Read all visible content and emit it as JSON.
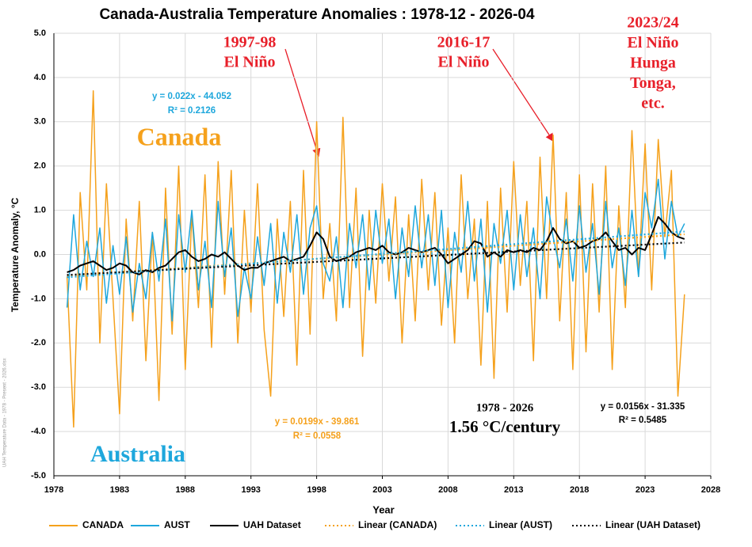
{
  "chart_data": {
    "type": "line",
    "title": "Canada-Australia Temperature Anomalies : 1978-12 - 2026-04",
    "x_label": "Year",
    "y_label": "Temperature Anomaly, °C",
    "side_note": "UAH Temperature Data - 1978 - Present - 2026.xlsx",
    "xlim": [
      1978,
      2028
    ],
    "xticks": [
      1978,
      1983,
      1988,
      1993,
      1998,
      2003,
      2008,
      2013,
      2018,
      2023,
      2028
    ],
    "ylim": [
      -5,
      5
    ],
    "yticks": [
      {
        "value": 5,
        "label": "5.0"
      },
      {
        "value": 4,
        "label": "4.0"
      },
      {
        "value": 3,
        "label": "3.0"
      },
      {
        "value": 2,
        "label": "2.0"
      },
      {
        "value": 1,
        "label": "1.0"
      },
      {
        "value": 0,
        "label": "0.0"
      },
      {
        "value": -1,
        "label": "-1.0"
      },
      {
        "value": -2,
        "label": "-2.0"
      },
      {
        "value": -3,
        "label": "-3.0"
      },
      {
        "value": -4,
        "label": "-4.0"
      },
      {
        "value": -5,
        "label": "-5.0"
      }
    ],
    "grid": true,
    "legend": "bottom",
    "x": [
      1979,
      1979.5,
      1980,
      1980.5,
      1981,
      1981.5,
      1982,
      1982.5,
      1983,
      1983.5,
      1984,
      1984.5,
      1985,
      1985.5,
      1986,
      1986.5,
      1987,
      1987.5,
      1988,
      1988.5,
      1989,
      1989.5,
      1990,
      1990.5,
      1991,
      1991.5,
      1992,
      1992.5,
      1993,
      1993.5,
      1994,
      1994.5,
      1995,
      1995.5,
      1996,
      1996.5,
      1997,
      1997.5,
      1998,
      1998.5,
      1999,
      1999.5,
      2000,
      2000.5,
      2001,
      2001.5,
      2002,
      2002.5,
      2003,
      2003.5,
      2004,
      2004.5,
      2005,
      2005.5,
      2006,
      2006.5,
      2007,
      2007.5,
      2008,
      2008.5,
      2009,
      2009.5,
      2010,
      2010.5,
      2011,
      2011.5,
      2012,
      2012.5,
      2013,
      2013.5,
      2014,
      2014.5,
      2015,
      2015.5,
      2016,
      2016.5,
      2017,
      2017.5,
      2018,
      2018.5,
      2019,
      2019.5,
      2020,
      2020.5,
      2021,
      2021.5,
      2022,
      2022.5,
      2023,
      2023.5,
      2024,
      2024.5,
      2025,
      2025.5,
      2026
    ],
    "series": [
      {
        "name": "CANADA",
        "color": "#f5a11c",
        "width": 1.5,
        "values": [
          -0.5,
          -3.9,
          1.4,
          -0.8,
          3.7,
          -2.0,
          1.6,
          -1.0,
          -3.6,
          0.8,
          -1.5,
          1.2,
          -2.4,
          0.5,
          -3.3,
          1.5,
          -1.8,
          2.0,
          -2.6,
          0.9,
          -1.2,
          1.8,
          -2.1,
          2.1,
          -0.9,
          1.9,
          -2.0,
          1.0,
          -1.3,
          1.6,
          -1.7,
          -3.2,
          0.8,
          -1.4,
          1.2,
          -2.5,
          1.9,
          -1.8,
          3.0,
          -1.0,
          0.7,
          -1.5,
          3.1,
          -1.2,
          1.5,
          -2.3,
          1.0,
          -1.1,
          1.6,
          -0.6,
          1.3,
          -2.0,
          0.9,
          -1.5,
          1.7,
          -0.8,
          1.4,
          -1.6,
          0.6,
          -2.0,
          1.8,
          -1.0,
          0.8,
          -2.5,
          1.2,
          -2.8,
          1.5,
          -1.3,
          2.1,
          -0.7,
          1.2,
          -2.4,
          2.2,
          -1.0,
          2.7,
          -1.5,
          1.4,
          -2.6,
          1.8,
          -2.2,
          1.6,
          -1.3,
          2.0,
          -2.6,
          1.1,
          -1.2,
          2.8,
          -0.5,
          2.5,
          -0.8,
          2.6,
          0.4,
          1.9,
          -3.2,
          -0.9
        ]
      },
      {
        "name": "AUST",
        "color": "#1ea7dc",
        "width": 1.5,
        "values": [
          -1.2,
          0.9,
          -0.8,
          0.3,
          -0.5,
          0.6,
          -1.1,
          0.2,
          -0.9,
          0.4,
          -1.3,
          -0.2,
          -1.0,
          0.5,
          -0.6,
          0.8,
          -1.5,
          0.9,
          -0.4,
          1.0,
          -0.8,
          0.3,
          -1.2,
          1.2,
          -0.5,
          0.6,
          -1.4,
          -0.3,
          -1.0,
          0.4,
          -0.7,
          0.7,
          -1.1,
          0.5,
          -0.4,
          0.9,
          -0.9,
          0.6,
          1.1,
          -0.2,
          -0.6,
          0.4,
          -1.2,
          0.7,
          -0.3,
          0.9,
          -0.8,
          1.0,
          -0.2,
          0.8,
          -1.0,
          0.6,
          -0.5,
          1.1,
          -0.3,
          0.9,
          -0.7,
          1.0,
          -1.2,
          0.5,
          -0.4,
          1.2,
          -0.6,
          0.8,
          -1.3,
          0.7,
          -0.2,
          1.0,
          -0.8,
          0.9,
          -0.5,
          0.6,
          -1.0,
          1.3,
          0.4,
          -0.3,
          0.8,
          -0.6,
          1.1,
          -0.4,
          0.7,
          -0.9,
          1.2,
          -0.3,
          0.6,
          -0.7,
          1.0,
          -0.5,
          1.4,
          0.6,
          1.7,
          -0.1,
          1.2,
          0.4,
          0.7
        ]
      },
      {
        "name": "UAH Dataset",
        "color": "#000000",
        "width": 2,
        "values": [
          -0.4,
          -0.35,
          -0.25,
          -0.2,
          -0.15,
          -0.25,
          -0.35,
          -0.3,
          -0.2,
          -0.25,
          -0.4,
          -0.45,
          -0.35,
          -0.4,
          -0.3,
          -0.25,
          -0.1,
          0.05,
          0.1,
          -0.05,
          -0.15,
          -0.1,
          0.0,
          -0.05,
          0.05,
          -0.1,
          -0.25,
          -0.35,
          -0.3,
          -0.3,
          -0.2,
          -0.15,
          -0.1,
          -0.05,
          -0.15,
          -0.1,
          -0.05,
          0.2,
          0.5,
          0.35,
          -0.05,
          -0.15,
          -0.1,
          -0.05,
          0.05,
          0.1,
          0.15,
          0.1,
          0.2,
          0.05,
          0.0,
          0.05,
          0.15,
          0.1,
          0.05,
          0.1,
          0.15,
          0.0,
          -0.2,
          -0.1,
          0.0,
          0.1,
          0.3,
          0.25,
          -0.05,
          0.05,
          -0.05,
          0.1,
          0.05,
          0.1,
          0.05,
          0.15,
          0.1,
          0.3,
          0.6,
          0.35,
          0.25,
          0.3,
          0.15,
          0.2,
          0.3,
          0.35,
          0.5,
          0.3,
          0.1,
          0.15,
          0.0,
          0.15,
          0.1,
          0.45,
          0.85,
          0.7,
          0.5,
          0.4,
          0.35
        ]
      }
    ],
    "trendlines": [
      {
        "name": "Linear (CANADA)",
        "color": "#f5a11c",
        "slope": 0.0199,
        "intercept": -39.861,
        "equation": "y = 0.0199x - 39.861",
        "r2": "R² = 0.0558"
      },
      {
        "name": "Linear (AUST)",
        "color": "#1ea7dc",
        "slope": 0.022,
        "intercept": -44.052,
        "equation": "y = 0.022x - 44.052",
        "r2": "R² = 0.2126"
      },
      {
        "name": "Linear (UAH Dataset)",
        "color": "#000000",
        "slope": 0.0156,
        "intercept": -31.335,
        "equation": "y = 0.0156x - 31.335",
        "r2": "R² = 0.5485"
      }
    ],
    "annotations": [
      {
        "lines": [
          "1997-98",
          "El Niño"
        ],
        "color": "#e8202a"
      },
      {
        "lines": [
          "2016-17",
          "El Niño"
        ],
        "color": "#e8202a"
      },
      {
        "lines": [
          "2023/24",
          "El Niño",
          "Hunga",
          "Tonga,",
          "etc."
        ],
        "color": "#e8202a"
      },
      {
        "lines": [
          "Canada"
        ],
        "color": "#f5a11c"
      },
      {
        "lines": [
          "Australia"
        ],
        "color": "#1ea7dc"
      },
      {
        "lines": [
          "1978 - 2026",
          "1.56 °C/century"
        ],
        "color": "#000000"
      }
    ]
  }
}
